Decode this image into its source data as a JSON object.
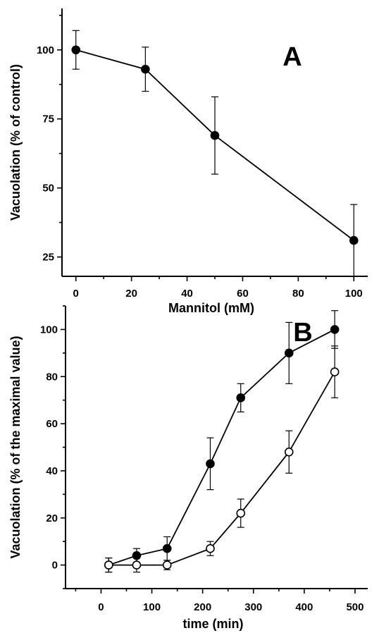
{
  "chart_data": [
    {
      "type": "line",
      "panel_label": "A",
      "xlabel": "Mannitol (mM)",
      "ylabel": "Vacuolation (% of control)",
      "xlim": [
        -5,
        105
      ],
      "ylim": [
        18,
        115
      ],
      "xticks": [
        0,
        20,
        40,
        60,
        80,
        100
      ],
      "yticks": [
        25,
        50,
        75,
        100
      ],
      "grid": false,
      "series": [
        {
          "marker": "filled-circle",
          "x": [
            0,
            25,
            50,
            100
          ],
          "y": [
            100,
            93,
            69,
            31
          ],
          "err": [
            7,
            8,
            14,
            13
          ]
        }
      ]
    },
    {
      "type": "line",
      "panel_label": "B",
      "xlabel": "time (min)",
      "ylabel": "Vacuolation (% of the maximal value)",
      "xlim": [
        -70,
        525
      ],
      "ylim": [
        -10,
        110
      ],
      "xticks": [
        0,
        100,
        200,
        300,
        400,
        500
      ],
      "yticks": [
        0,
        20,
        40,
        60,
        80,
        100
      ],
      "grid": false,
      "series": [
        {
          "marker": "filled-circle",
          "x": [
            15,
            70,
            130,
            215,
            275,
            370,
            460
          ],
          "y": [
            0,
            4,
            7,
            43,
            71,
            90,
            100
          ],
          "err": [
            3,
            3,
            5,
            11,
            6,
            13,
            8
          ]
        },
        {
          "marker": "open-circle",
          "x": [
            15,
            70,
            130,
            215,
            275,
            370,
            460
          ],
          "y": [
            0,
            0,
            0,
            7,
            22,
            48,
            82
          ],
          "err": [
            3,
            3,
            2,
            3,
            6,
            9,
            11
          ]
        }
      ]
    }
  ]
}
